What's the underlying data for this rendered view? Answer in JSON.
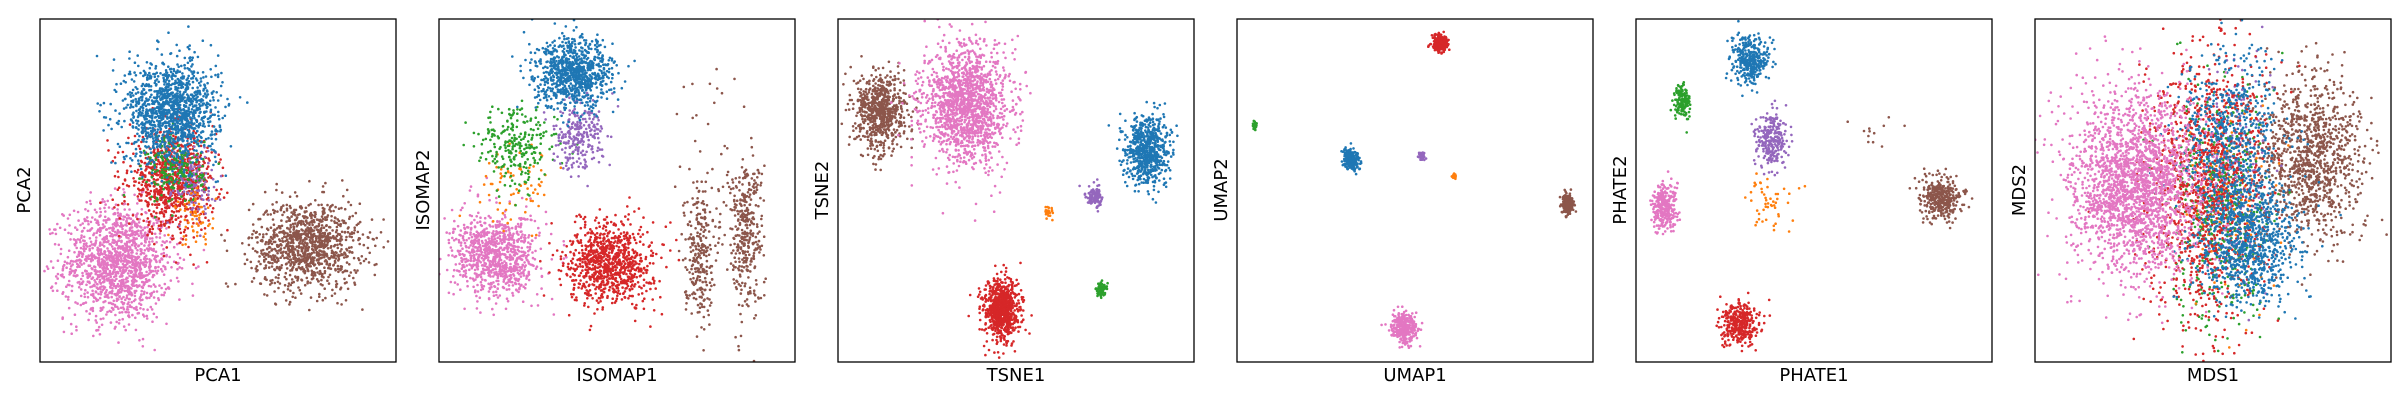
{
  "palette": {
    "blue": "#1f77b4",
    "orange": "#ff7f0e",
    "green": "#2ca02c",
    "red": "#d62728",
    "purple": "#9467bd",
    "brown": "#8c564b",
    "pink": "#e377c2"
  },
  "chart_data": [
    {
      "type": "scatter",
      "xlabel": "PCA1",
      "ylabel": "PCA2",
      "ticks": "none",
      "xlim": [
        0,
        1
      ],
      "ylim": [
        0,
        1
      ],
      "clusters": [
        {
          "color": "pink",
          "center": [
            0.22,
            0.29
          ],
          "spread": [
            0.075,
            0.085
          ],
          "n": 1400
        },
        {
          "color": "brown",
          "center": [
            0.75,
            0.34
          ],
          "spread": [
            0.075,
            0.065
          ],
          "n": 1100
        },
        {
          "color": "red",
          "center": [
            0.37,
            0.53
          ],
          "spread": [
            0.06,
            0.07
          ],
          "n": 900
        },
        {
          "color": "purple",
          "center": [
            0.43,
            0.53
          ],
          "spread": [
            0.03,
            0.05
          ],
          "n": 150
        },
        {
          "color": "green",
          "center": [
            0.38,
            0.56
          ],
          "spread": [
            0.04,
            0.05
          ],
          "n": 200
        },
        {
          "color": "orange",
          "center": [
            0.44,
            0.42
          ],
          "spread": [
            0.03,
            0.04
          ],
          "n": 60
        },
        {
          "color": "blue",
          "center": [
            0.37,
            0.73
          ],
          "spread": [
            0.065,
            0.075
          ],
          "n": 1300
        }
      ]
    },
    {
      "type": "scatter",
      "xlabel": "ISOMAP1",
      "ylabel": "ISOMAP2",
      "ticks": "none",
      "xlim": [
        0,
        1
      ],
      "ylim": [
        0,
        1
      ],
      "clusters": [
        {
          "color": "brown",
          "center": [
            0.73,
            0.32
          ],
          "spread": [
            0.02,
            0.1
          ],
          "n": 250
        },
        {
          "color": "brown",
          "center": [
            0.86,
            0.38
          ],
          "spread": [
            0.025,
            0.11
          ],
          "n": 350
        },
        {
          "color": "brown",
          "center": [
            0.79,
            0.55
          ],
          "spread": [
            0.06,
            0.15
          ],
          "n": 40
        },
        {
          "color": "pink",
          "center": [
            0.16,
            0.31
          ],
          "spread": [
            0.06,
            0.06
          ],
          "n": 900
        },
        {
          "color": "red",
          "center": [
            0.48,
            0.29
          ],
          "spread": [
            0.06,
            0.06
          ],
          "n": 900
        },
        {
          "color": "orange",
          "center": [
            0.22,
            0.52
          ],
          "spread": [
            0.05,
            0.06
          ],
          "n": 70
        },
        {
          "color": "green",
          "center": [
            0.22,
            0.63
          ],
          "spread": [
            0.055,
            0.06
          ],
          "n": 250
        },
        {
          "color": "purple",
          "center": [
            0.39,
            0.66
          ],
          "spread": [
            0.035,
            0.05
          ],
          "n": 250
        },
        {
          "color": "blue",
          "center": [
            0.38,
            0.84
          ],
          "spread": [
            0.055,
            0.05
          ],
          "n": 900
        }
      ]
    },
    {
      "type": "scatter",
      "xlabel": "TSNE1",
      "ylabel": "TSNE2",
      "ticks": "none",
      "xlim": [
        0,
        1
      ],
      "ylim": [
        0,
        1
      ],
      "clusters": [
        {
          "color": "brown",
          "center": [
            0.12,
            0.73
          ],
          "spread": [
            0.035,
            0.055
          ],
          "n": 700
        },
        {
          "color": "pink",
          "center": [
            0.36,
            0.75
          ],
          "spread": [
            0.06,
            0.085
          ],
          "n": 1500
        },
        {
          "color": "blue",
          "center": [
            0.87,
            0.62
          ],
          "spread": [
            0.03,
            0.05
          ],
          "n": 700
        },
        {
          "color": "purple",
          "center": [
            0.72,
            0.48
          ],
          "spread": [
            0.012,
            0.016
          ],
          "n": 120
        },
        {
          "color": "orange",
          "center": [
            0.59,
            0.44
          ],
          "spread": [
            0.006,
            0.01
          ],
          "n": 25
        },
        {
          "color": "green",
          "center": [
            0.74,
            0.21
          ],
          "spread": [
            0.008,
            0.012
          ],
          "n": 70
        },
        {
          "color": "red",
          "center": [
            0.46,
            0.15
          ],
          "spread": [
            0.025,
            0.045
          ],
          "n": 800
        }
      ]
    },
    {
      "type": "scatter",
      "xlabel": "UMAP1",
      "ylabel": "UMAP2",
      "ticks": "none",
      "xlim": [
        0,
        1
      ],
      "ylim": [
        0,
        1
      ],
      "clusters": [
        {
          "color": "red",
          "center": [
            0.57,
            0.93
          ],
          "spread": [
            0.011,
            0.013
          ],
          "n": 250
        },
        {
          "color": "green",
          "center": [
            0.05,
            0.69
          ],
          "spread": [
            0.004,
            0.005
          ],
          "n": 30
        },
        {
          "color": "blue",
          "center": [
            0.32,
            0.59
          ],
          "spread": [
            0.011,
            0.014
          ],
          "n": 250
        },
        {
          "color": "purple",
          "center": [
            0.52,
            0.6
          ],
          "spread": [
            0.005,
            0.005
          ],
          "n": 50
        },
        {
          "color": "orange",
          "center": [
            0.61,
            0.54
          ],
          "spread": [
            0.003,
            0.004
          ],
          "n": 20
        },
        {
          "color": "brown",
          "center": [
            0.93,
            0.46
          ],
          "spread": [
            0.008,
            0.015
          ],
          "n": 200
        },
        {
          "color": "pink",
          "center": [
            0.47,
            0.1
          ],
          "spread": [
            0.018,
            0.02
          ],
          "n": 350
        }
      ]
    },
    {
      "type": "scatter",
      "xlabel": "PHATE1",
      "ylabel": "PHATE2",
      "ticks": "none",
      "xlim": [
        0,
        1
      ],
      "ylim": [
        0,
        1
      ],
      "clusters": [
        {
          "color": "blue",
          "center": [
            0.32,
            0.88
          ],
          "spread": [
            0.025,
            0.035
          ],
          "n": 350
        },
        {
          "color": "green",
          "center": [
            0.13,
            0.76
          ],
          "spread": [
            0.012,
            0.025
          ],
          "n": 150
        },
        {
          "color": "purple",
          "center": [
            0.38,
            0.65
          ],
          "spread": [
            0.022,
            0.04
          ],
          "n": 250
        },
        {
          "color": "orange",
          "center": [
            0.38,
            0.47
          ],
          "spread": [
            0.04,
            0.04
          ],
          "n": 50
        },
        {
          "color": "pink",
          "center": [
            0.08,
            0.45
          ],
          "spread": [
            0.018,
            0.035
          ],
          "n": 300
        },
        {
          "color": "brown",
          "center": [
            0.86,
            0.48
          ],
          "spread": [
            0.03,
            0.03
          ],
          "n": 350
        },
        {
          "color": "brown",
          "center": [
            0.7,
            0.68
          ],
          "spread": [
            0.04,
            0.02
          ],
          "n": 12
        },
        {
          "color": "red",
          "center": [
            0.29,
            0.11
          ],
          "spread": [
            0.025,
            0.03
          ],
          "n": 350
        }
      ]
    },
    {
      "type": "scatter",
      "xlabel": "MDS1",
      "ylabel": "MDS2",
      "ticks": "none",
      "xlim": [
        0,
        1
      ],
      "ylim": [
        0,
        1
      ],
      "clusters": [
        {
          "color": "brown",
          "center": [
            0.77,
            0.6
          ],
          "spread": [
            0.075,
            0.12
          ],
          "n": 1100
        },
        {
          "color": "purple",
          "center": [
            0.55,
            0.55
          ],
          "spread": [
            0.05,
            0.15
          ],
          "n": 200
        },
        {
          "color": "green",
          "center": [
            0.52,
            0.45
          ],
          "spread": [
            0.07,
            0.18
          ],
          "n": 500
        },
        {
          "color": "orange",
          "center": [
            0.55,
            0.45
          ],
          "spread": [
            0.06,
            0.15
          ],
          "n": 150
        },
        {
          "color": "red",
          "center": [
            0.48,
            0.5
          ],
          "spread": [
            0.08,
            0.2
          ],
          "n": 1200
        },
        {
          "color": "blue",
          "center": [
            0.55,
            0.65
          ],
          "spread": [
            0.07,
            0.14
          ],
          "n": 600
        },
        {
          "color": "blue",
          "center": [
            0.6,
            0.35
          ],
          "spread": [
            0.07,
            0.09
          ],
          "n": 900
        },
        {
          "color": "pink",
          "center": [
            0.28,
            0.52
          ],
          "spread": [
            0.09,
            0.13
          ],
          "n": 2200
        }
      ]
    }
  ]
}
